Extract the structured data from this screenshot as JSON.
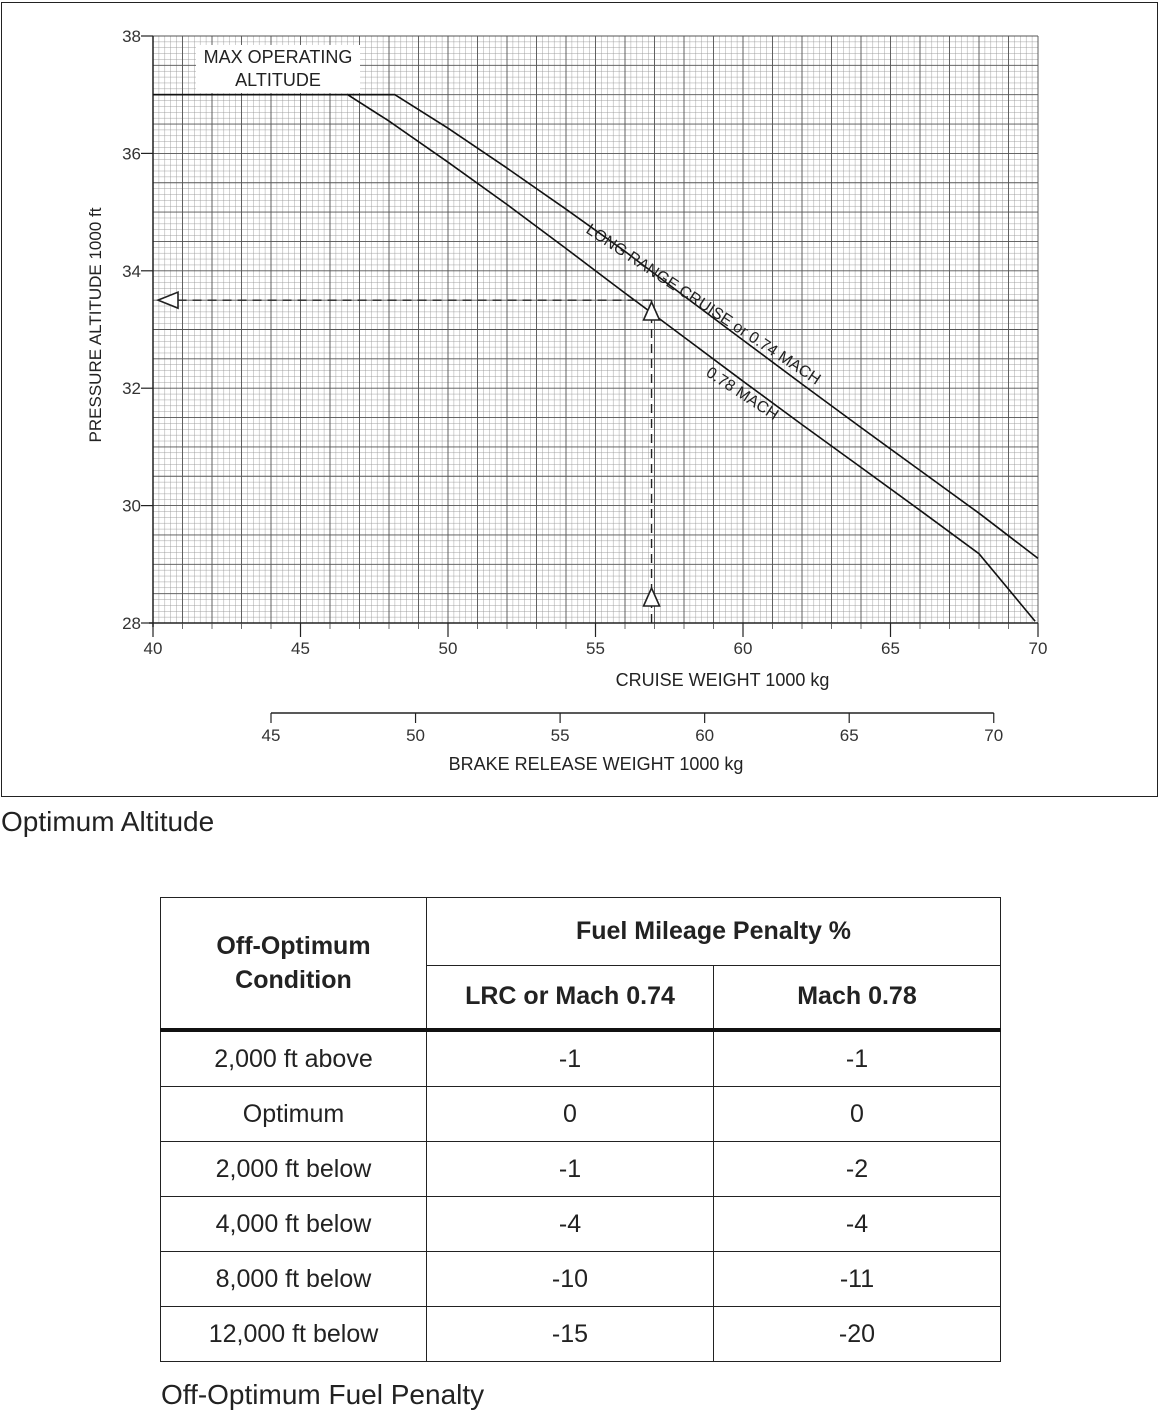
{
  "chart_data": {
    "type": "line",
    "title": "Optimum Altitude",
    "ylabel": "PRESSURE ALTITUDE   1000 ft",
    "xlabel": "CRUISE WEIGHT   1000 kg",
    "x2label": "BRAKE RELEASE WEIGHT   1000 kg",
    "xlim": [
      40,
      70
    ],
    "ylim": [
      28,
      38
    ],
    "x_ticks": [
      "40",
      "45",
      "50",
      "55",
      "60",
      "65",
      "70"
    ],
    "y_ticks": [
      "28",
      "30",
      "32",
      "34",
      "36",
      "38"
    ],
    "x2_ticks": [
      "45",
      "50",
      "55",
      "60",
      "65",
      "70"
    ],
    "x2_map_to_x": [
      [
        45,
        44.0
      ],
      [
        50,
        48.9
      ],
      [
        55,
        53.8
      ],
      [
        60,
        58.7
      ],
      [
        65,
        63.6
      ],
      [
        70,
        68.5
      ]
    ],
    "grid": true,
    "annotations": [
      "MAX OPERATING",
      "ALTITUDE",
      "LONG RANGE CRUISE  or  0.74 MACH",
      "0.78 MACH"
    ],
    "series": [
      {
        "name": "LONG RANGE CRUISE  or  0.74 MACH",
        "x": [
          40,
          48.2,
          50,
          52,
          54,
          56,
          58,
          60,
          62,
          64,
          66,
          68,
          70
        ],
        "y": [
          37.0,
          37.0,
          36.43,
          35.75,
          35.05,
          34.33,
          33.57,
          32.82,
          32.07,
          31.33,
          30.6,
          29.87,
          29.1
        ]
      },
      {
        "name": "0.78 MACH",
        "x": [
          46.6,
          48,
          50,
          52,
          54,
          56,
          58,
          60,
          62,
          64,
          66,
          68,
          69.9
        ],
        "y": [
          37.0,
          36.55,
          35.85,
          35.13,
          34.38,
          33.62,
          32.87,
          32.12,
          31.38,
          30.65,
          29.92,
          29.18,
          28.03
        ]
      }
    ],
    "example": {
      "x": 56.9,
      "y": 33.5
    }
  },
  "table": {
    "title": "Off-Optimum Fuel Penalty",
    "header_condition": [
      "Off-Optimum",
      "Condition"
    ],
    "header_group": "Fuel Mileage Penalty %",
    "header_cols": [
      "LRC or Mach 0.74",
      "Mach 0.78"
    ],
    "rows": [
      {
        "condition": "2,000 ft above",
        "lrc": "-1",
        "m78": "-1"
      },
      {
        "condition": "Optimum",
        "lrc": "0",
        "m78": "0"
      },
      {
        "condition": "2,000 ft below",
        "lrc": "-1",
        "m78": "-2"
      },
      {
        "condition": "4,000 ft below",
        "lrc": "-4",
        "m78": "-4"
      },
      {
        "condition": "8,000 ft below",
        "lrc": "-10",
        "m78": "-11"
      },
      {
        "condition": "12,000 ft below",
        "lrc": "-15",
        "m78": "-20"
      }
    ]
  }
}
